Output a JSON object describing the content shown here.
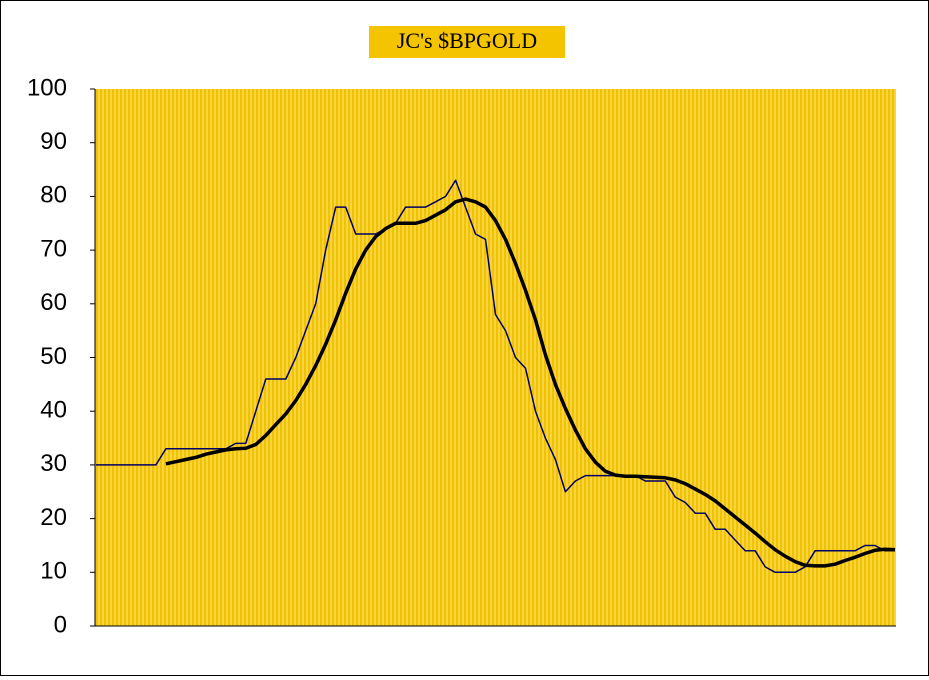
{
  "chart_data": {
    "type": "line",
    "title": "JC's $BPGOLD",
    "title_background": "#f5c400",
    "plot_background": "#f2c200",
    "categories": [
      null,
      null,
      null,
      null,
      null,
      null,
      null,
      null,
      null,
      null,
      null,
      null,
      null,
      null,
      null,
      null,
      null,
      null,
      null,
      null,
      null,
      null,
      null,
      null,
      null,
      null,
      null,
      null,
      null,
      null,
      null,
      null,
      null,
      null,
      null,
      null,
      null,
      null,
      null,
      null,
      null,
      null,
      null,
      null,
      null,
      null,
      null,
      null,
      null,
      null,
      null,
      null,
      null,
      null,
      null,
      null,
      null,
      null,
      null,
      null,
      null,
      null,
      null,
      null,
      null,
      null,
      null,
      null,
      null,
      null,
      null,
      null,
      null,
      null,
      null,
      null,
      null,
      null,
      null,
      null,
      null
    ],
    "series": [
      {
        "color": "#000066",
        "width": 1.5,
        "values": [
          30,
          30,
          30,
          30,
          30,
          30,
          30,
          33,
          33,
          33,
          33,
          33,
          33,
          33,
          34,
          34,
          40,
          46,
          46,
          46,
          50,
          55,
          60,
          70,
          78,
          78,
          73,
          73,
          73,
          74,
          75,
          78,
          78,
          78,
          79,
          80,
          83,
          78,
          73,
          72,
          58,
          55,
          50,
          48,
          40,
          35,
          31,
          25,
          27,
          28,
          28,
          28,
          28,
          28,
          28,
          27,
          27,
          27,
          24,
          23,
          21,
          21,
          18,
          18,
          16,
          14,
          14,
          11,
          10,
          10,
          10,
          11,
          14,
          14,
          14,
          14,
          14,
          15,
          15,
          14,
          14
        ]
      },
      {
        "color": "#000000",
        "width": 3.5,
        "values": [
          null,
          null,
          null,
          null,
          null,
          null,
          null,
          30.2,
          30.6,
          31,
          31.4,
          32,
          32.4,
          32.8,
          33,
          33.1,
          33.8,
          35.5,
          37.5,
          39.5,
          42,
          45,
          48.5,
          52.5,
          57,
          62,
          66.5,
          70,
          72.5,
          74,
          75,
          75,
          75,
          75.5,
          76.5,
          77.5,
          79,
          79.5,
          79,
          78,
          75.5,
          72,
          67.5,
          62.5,
          57,
          50.5,
          45,
          40.5,
          36.5,
          33,
          30.5,
          28.8,
          28.1,
          27.9,
          27.9,
          27.8,
          27.7,
          27.6,
          27.2,
          26.5,
          25.5,
          24.5,
          23.3,
          21.8,
          20.3,
          18.8,
          17.3,
          15.7,
          14.2,
          13,
          12,
          11.3,
          11.2,
          11.2,
          11.5,
          12.2,
          12.8,
          13.5,
          14.1,
          14.3,
          14.2
        ]
      }
    ],
    "ylim": [
      0,
      100
    ],
    "yticks": [
      0,
      10,
      20,
      30,
      40,
      50,
      60,
      70,
      80,
      90,
      100
    ]
  }
}
